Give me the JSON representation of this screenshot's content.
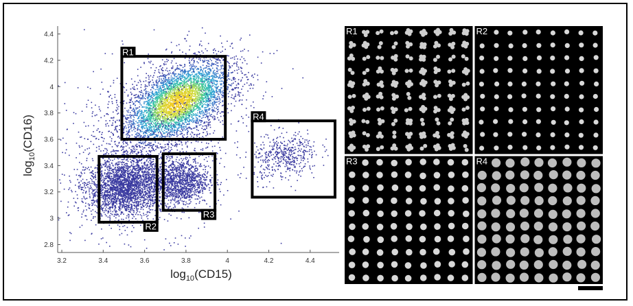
{
  "chart_data": [
    {
      "type": "scatter",
      "xlabel": {
        "prefix": "log",
        "sub": "10",
        "rest": "(CD15)"
      },
      "ylabel": {
        "prefix": "log",
        "sub": "10",
        "rest": "(CD16)"
      },
      "xlim": [
        3.18,
        4.54
      ],
      "ylim": [
        2.74,
        4.46
      ],
      "xticks": [
        3.2,
        3.4,
        3.6,
        3.8,
        4.0,
        4.2,
        4.4
      ],
      "xtick_labels": [
        "3.2",
        "3.4",
        "3.6",
        "3.8",
        "4",
        "4.2",
        "4.4"
      ],
      "yticks": [
        2.8,
        3.0,
        3.2,
        3.4,
        3.6,
        3.8,
        4.0,
        4.2,
        4.4
      ],
      "ytick_labels": [
        "2.8",
        "3",
        "3.2",
        "3.4",
        "3.6",
        "3.8",
        "4",
        "4.2",
        "4.4"
      ],
      "colormap": [
        "#2b2e8c",
        "#3b5fc0",
        "#2fa3d6",
        "#38c6a2",
        "#c8dc3c",
        "#f6c91e"
      ],
      "point_color": "#3a3aa0",
      "populations": [
        {
          "cx": 3.76,
          "cy": 3.88,
          "sx": 0.13,
          "sy": 0.16,
          "rho": 0.55,
          "n": 4200
        },
        {
          "cx": 3.51,
          "cy": 3.24,
          "sx": 0.09,
          "sy": 0.11,
          "rho": 0.15,
          "n": 2400
        },
        {
          "cx": 3.77,
          "cy": 3.27,
          "sx": 0.07,
          "sy": 0.09,
          "rho": 0.1,
          "n": 1200
        },
        {
          "cx": 4.28,
          "cy": 3.47,
          "sx": 0.08,
          "sy": 0.09,
          "rho": 0.25,
          "n": 450
        },
        {
          "cx": 3.62,
          "cy": 3.55,
          "sx": 0.25,
          "sy": 0.35,
          "rho": 0.3,
          "n": 1100
        }
      ],
      "gates": [
        {
          "label": "R1",
          "x": [
            3.49,
            3.99
          ],
          "y": [
            3.6,
            4.23
          ],
          "label_pos": "top-left"
        },
        {
          "label": "R2",
          "x": [
            3.38,
            3.66
          ],
          "y": [
            2.97,
            3.47
          ],
          "label_pos": "bottom-right"
        },
        {
          "label": "R3",
          "x": [
            3.69,
            3.94
          ],
          "y": [
            3.06,
            3.49
          ],
          "label_pos": "bottom-right"
        },
        {
          "label": "R4",
          "x": [
            4.12,
            4.52
          ],
          "y": [
            3.16,
            3.74
          ],
          "label_pos": "top-left"
        }
      ]
    }
  ],
  "image_panels": [
    {
      "label": "R1",
      "cell_shape": "multilobed",
      "rows": 10,
      "cols": 9
    },
    {
      "label": "R2",
      "cell_shape": "round-small",
      "rows": 10,
      "cols": 9
    },
    {
      "label": "R3",
      "cell_shape": "round",
      "rows": 10,
      "cols": 9
    },
    {
      "label": "R4",
      "cell_shape": "round-large",
      "rows": 10,
      "cols": 9
    }
  ],
  "scale_bar": true
}
